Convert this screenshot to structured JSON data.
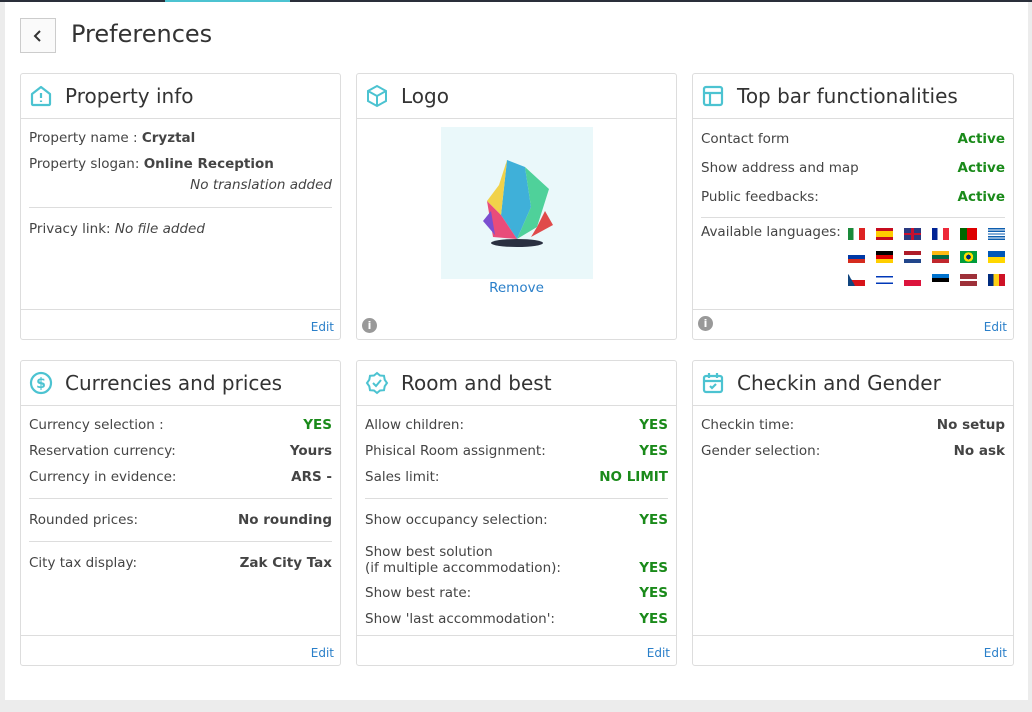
{
  "header": {
    "title": "Preferences",
    "back_icon": "chevron-left-icon"
  },
  "accent": "#4cc3d1",
  "property": {
    "title": "Property info",
    "name_label": "Property name :",
    "name_value": "Cryztal",
    "slogan_label": "Property slogan:",
    "slogan_value": "Online Reception",
    "no_translation": "No translation added",
    "privacy_label": "Privacy link:",
    "privacy_value": "No file added",
    "edit": "Edit"
  },
  "logo": {
    "title": "Logo",
    "remove": "Remove"
  },
  "topbar": {
    "title": "Top bar functionalities",
    "items": [
      {
        "label": "Contact form",
        "value": "Active"
      },
      {
        "label": "Show address and map",
        "value": "Active"
      },
      {
        "label": "Public feedbacks:",
        "value": "Active"
      }
    ],
    "languages_label": "Available languages:",
    "languages": [
      "it",
      "es",
      "gb",
      "fr",
      "pt",
      "gr",
      "ru",
      "de",
      "nl",
      "lt",
      "br",
      "ua",
      "cz",
      "il",
      "pl",
      "ee",
      "lv",
      "ro"
    ],
    "edit": "Edit"
  },
  "currencies": {
    "title": "Currencies and prices",
    "rows": [
      {
        "label": "Currency selection :",
        "value": "YES"
      },
      {
        "label": "Reservation currency:",
        "value": "Yours"
      },
      {
        "label": "Currency in evidence:",
        "value": "ARS -"
      },
      {
        "label": "Rounded prices:",
        "value": "No rounding"
      },
      {
        "label": "City tax display:",
        "value": "Zak City Tax"
      }
    ],
    "edit": "Edit"
  },
  "room": {
    "title": "Room and best",
    "rows": [
      {
        "label": "Allow children:",
        "value": "YES"
      },
      {
        "label": "Phisical Room assignment:",
        "value": "YES"
      },
      {
        "label": "Sales limit:",
        "value": "NO LIMIT"
      },
      {
        "label": "Show occupancy selection:",
        "value": "YES"
      },
      {
        "label": "Show best solution",
        "label2": "(if multiple accommodation):",
        "value": "YES"
      },
      {
        "label": "Show best rate:",
        "value": "YES"
      },
      {
        "label": "Show 'last accommodation':",
        "value": "YES"
      }
    ],
    "edit": "Edit"
  },
  "checkin": {
    "title": "Checkin and Gender",
    "rows": [
      {
        "label": "Checkin time:",
        "value": "No setup"
      },
      {
        "label": "Gender selection:",
        "value": "No ask"
      }
    ],
    "edit": "Edit"
  }
}
